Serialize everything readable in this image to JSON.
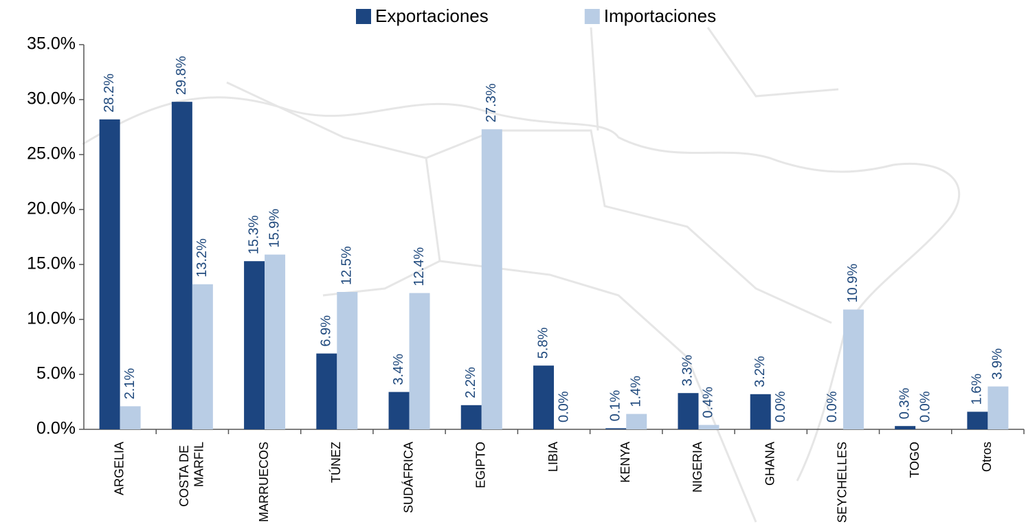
{
  "chart_data": {
    "type": "bar",
    "categories": [
      "ARGELIA",
      "COSTA DE MARFIL",
      "MARRUECOS",
      "TÚNEZ",
      "SUDÁFRICA",
      "EGIPTO",
      "LIBIA",
      "KENYA",
      "NIGERIA",
      "GHANA",
      "SEYCHELLES",
      "TOGO",
      "Otros"
    ],
    "series": [
      {
        "name": "Exportaciones",
        "color": "#1c4580",
        "values": [
          28.2,
          29.8,
          15.3,
          6.9,
          3.4,
          2.2,
          5.8,
          0.1,
          3.3,
          3.2,
          0.0,
          0.3,
          1.6
        ],
        "value_labels": [
          "28.2%",
          "29.8%",
          "15.3%",
          "6.9%",
          "3.4%",
          "2.2%",
          "5.8%",
          "0.1%",
          "3.3%",
          "3.2%",
          "0.0%",
          "0.3%",
          "1.6%"
        ]
      },
      {
        "name": "Importaciones",
        "color": "#b9cde5",
        "values": [
          2.1,
          13.2,
          15.9,
          12.5,
          12.4,
          27.3,
          0.0,
          1.4,
          0.4,
          0.0,
          10.9,
          0.0,
          3.9
        ],
        "value_labels": [
          "2.1%",
          "13.2%",
          "15.9%",
          "12.5%",
          "12.4%",
          "27.3%",
          "0.0%",
          "1.4%",
          "0.4%",
          "0.0%",
          "10.9%",
          "0.0%",
          "3.9%"
        ]
      }
    ],
    "ylim": [
      0,
      35
    ],
    "yticks": [
      {
        "value": 0,
        "label": "0.0%"
      },
      {
        "value": 5,
        "label": "5.0%"
      },
      {
        "value": 10,
        "label": "10.0%"
      },
      {
        "value": 15,
        "label": "15.0%"
      },
      {
        "value": 20,
        "label": "20.0%"
      },
      {
        "value": 25,
        "label": "25.0%"
      },
      {
        "value": 30,
        "label": "30.0%"
      },
      {
        "value": 35,
        "label": "35.0%"
      }
    ],
    "legend": "top"
  }
}
